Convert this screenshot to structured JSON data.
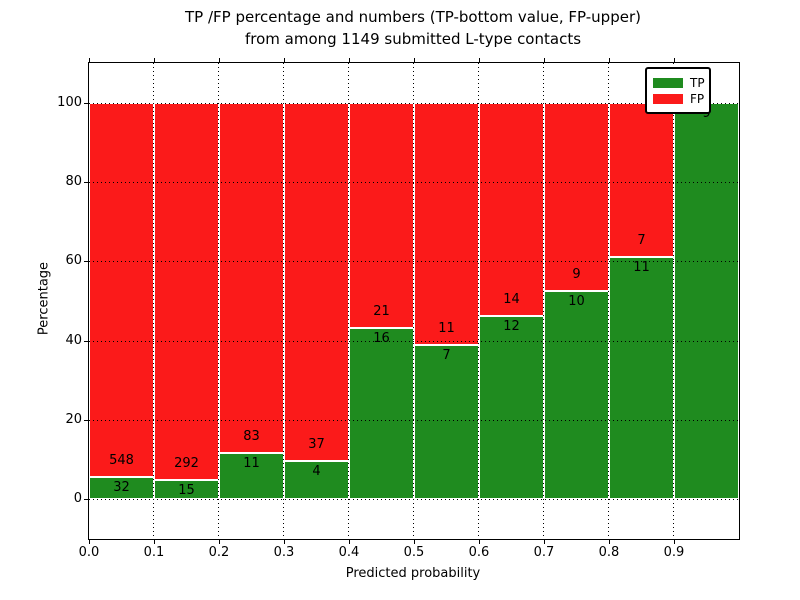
{
  "title": {
    "line1": "TP /FP percentage and numbers (TP-bottom value, FP-upper)",
    "line2": "from among 1149 submitted L-type contacts"
  },
  "chart_data": {
    "type": "bar",
    "stacked": true,
    "orientation": "vertical",
    "title": "TP /FP percentage and numbers (TP-bottom value, FP-upper) from among 1149 submitted L-type contacts",
    "xlabel": "Predicted probability",
    "ylabel": "Percentage",
    "xlim": [
      0.0,
      1.0
    ],
    "ylim": [
      -10,
      110
    ],
    "bin_width": 0.1,
    "total_contacts": 1149,
    "grid": "dotted",
    "legend_position": "upper right",
    "categories": [
      "0.0",
      "0.1",
      "0.2",
      "0.3",
      "0.4",
      "0.5",
      "0.6",
      "0.7",
      "0.8",
      "0.9"
    ],
    "x_tick_labels": [
      "0.0",
      "0.1",
      "0.2",
      "0.3",
      "0.4",
      "0.5",
      "0.6",
      "0.7",
      "0.8",
      "0.9"
    ],
    "y_tick_labels": [
      "0",
      "20",
      "40",
      "60",
      "80",
      "100"
    ],
    "y_tick_values": [
      0,
      20,
      40,
      60,
      80,
      100
    ],
    "series": [
      {
        "name": "TP",
        "color": "#1f8b1f",
        "values": [
          32,
          15,
          11,
          4,
          16,
          7,
          12,
          10,
          11,
          9
        ]
      },
      {
        "name": "FP",
        "color": "#fb1a1a",
        "values": [
          548,
          292,
          83,
          37,
          21,
          11,
          14,
          9,
          7,
          0
        ]
      }
    ],
    "bar_edge_color": "#ffffff",
    "annotation_note": "TP count shown below segment boundary, FP count above; bars are percentage-normalized to 100"
  }
}
